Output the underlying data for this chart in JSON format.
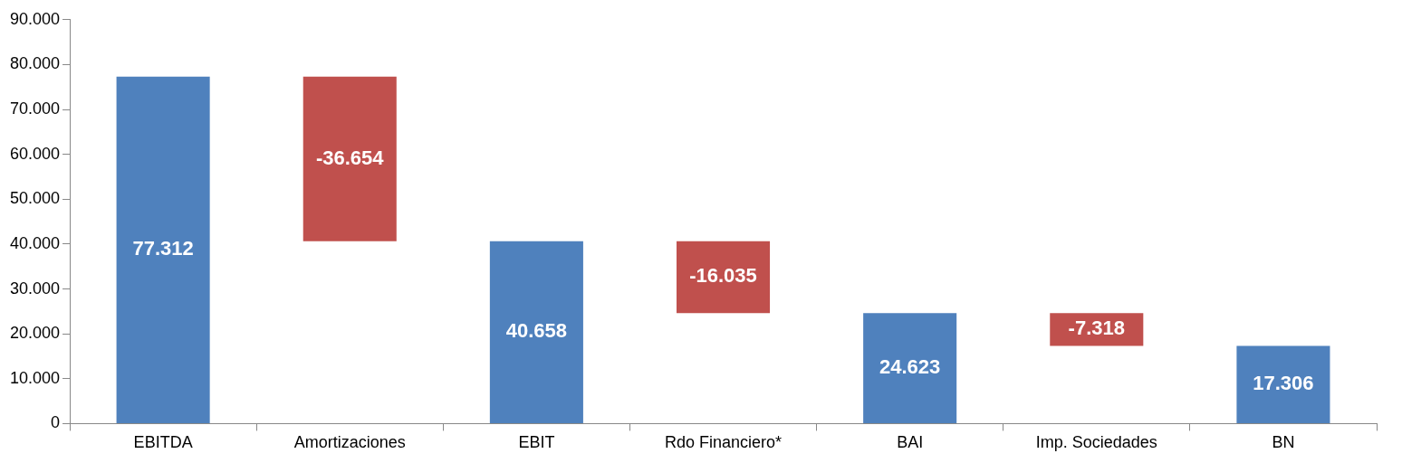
{
  "chart_data": {
    "type": "bar",
    "categories": [
      "EBITDA",
      "Amortizaciones",
      "EBIT",
      "Rdo Financiero*",
      "BAI",
      "Imp. Sociedades",
      "BN"
    ],
    "values": [
      77312,
      -36654,
      40658,
      -16035,
      24623,
      -7318,
      17306
    ],
    "base": [
      0,
      77312,
      0,
      40658,
      0,
      24623,
      0
    ],
    "colors": [
      "#4f81bd",
      "#c0504d",
      "#4f81bd",
      "#c0504d",
      "#4f81bd",
      "#c0504d",
      "#4f81bd"
    ],
    "value_labels": [
      "77.312",
      "-36.654",
      "40.658",
      "-16.035",
      "24.623",
      "-7.318",
      "17.306"
    ],
    "ylim": [
      0,
      90000
    ],
    "yticks": [
      {
        "value": 0,
        "label": "0"
      },
      {
        "value": 10000,
        "label": "10.000"
      },
      {
        "value": 20000,
        "label": "20.000"
      },
      {
        "value": 30000,
        "label": "30.000"
      },
      {
        "value": 40000,
        "label": "40.000"
      },
      {
        "value": 50000,
        "label": "50.000"
      },
      {
        "value": 60000,
        "label": "60.000"
      },
      {
        "value": 70000,
        "label": "70.000"
      },
      {
        "value": 80000,
        "label": "80.000"
      },
      {
        "value": 90000,
        "label": "90.000"
      }
    ],
    "grid": false,
    "legend": false
  }
}
